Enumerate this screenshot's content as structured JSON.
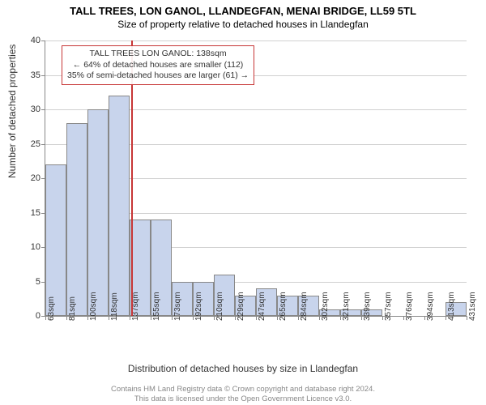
{
  "title": "TALL TREES, LON GANOL, LLANDEGFAN, MENAI BRIDGE, LL59 5TL",
  "subtitle": "Size of property relative to detached houses in Llandegfan",
  "ylabel": "Number of detached properties",
  "xlabel": "Distribution of detached houses by size in Llandegfan",
  "chart": {
    "type": "histogram",
    "ylim": [
      0,
      40
    ],
    "ytick_step": 5,
    "bar_color": "#c8d4ec",
    "bar_border": "#888888",
    "grid_color": "#d0d0d0",
    "background_color": "#ffffff",
    "xtick_labels": [
      "63sqm",
      "81sqm",
      "100sqm",
      "118sqm",
      "137sqm",
      "155sqm",
      "173sqm",
      "192sqm",
      "210sqm",
      "229sqm",
      "247sqm",
      "265sqm",
      "284sqm",
      "302sqm",
      "321sqm",
      "339sqm",
      "357sqm",
      "376sqm",
      "394sqm",
      "413sqm",
      "431sqm"
    ],
    "values": [
      22,
      28,
      30,
      32,
      14,
      14,
      5,
      5,
      6,
      3,
      4,
      3,
      3,
      1,
      1,
      1,
      0,
      0,
      0,
      2
    ],
    "reference_line_pos": 4.1,
    "reference_line_color": "#c73636"
  },
  "annotation": {
    "line1": "TALL TREES LON GANOL: 138sqm",
    "line2": "← 64% of detached houses are smaller (112)",
    "line3": "35% of semi-detached houses are larger (61) →",
    "border_color": "#c73636"
  },
  "footer": {
    "line1": "Contains HM Land Registry data © Crown copyright and database right 2024.",
    "line2": "This data is licensed under the Open Government Licence v3.0."
  }
}
